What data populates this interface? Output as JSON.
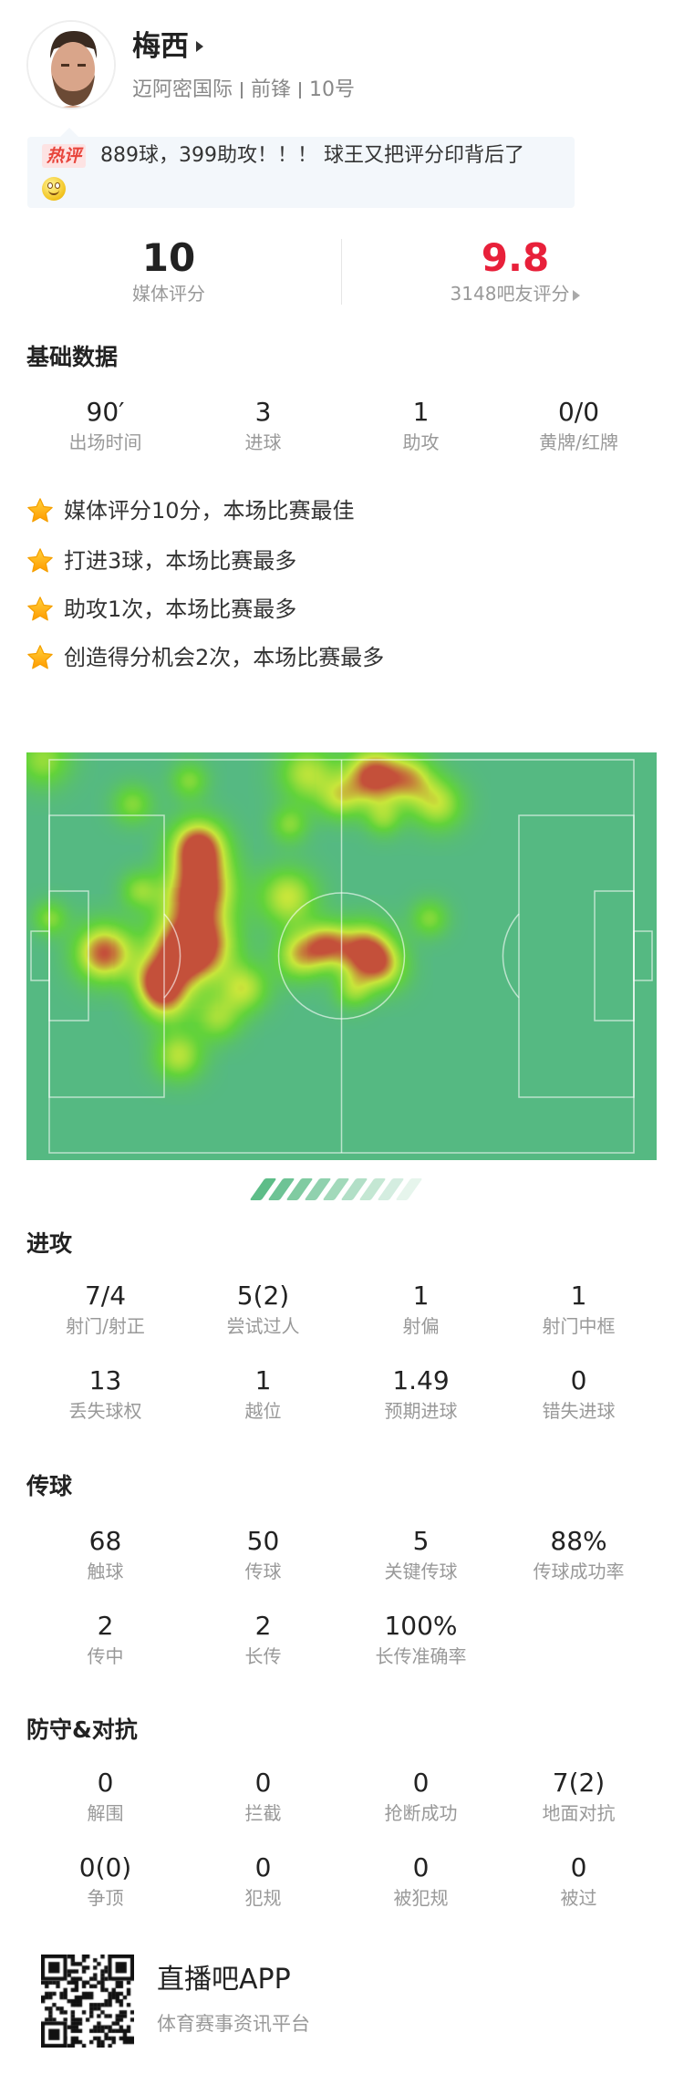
{
  "player": {
    "name": "梅西",
    "team": "迈阿密国际",
    "position": "前锋",
    "number": "10号"
  },
  "hot_comment": {
    "badge": "热评",
    "text": "889球，399助攻！！！ 球王又把评分印背后了",
    "emoji": "smiley-emoji"
  },
  "ratings": {
    "media": {
      "value": "10",
      "label": "媒体评分"
    },
    "fans": {
      "value": "9.8",
      "label": "3148吧友评分",
      "color": "#e8203a"
    }
  },
  "basic": {
    "title": "基础数据",
    "stats": [
      {
        "value": "90′",
        "label": "出场时间"
      },
      {
        "value": "3",
        "label": "进球"
      },
      {
        "value": "1",
        "label": "助攻"
      },
      {
        "value": "0/0",
        "label": "黄牌/红牌"
      }
    ]
  },
  "highlights": [
    "媒体评分10分，本场比赛最佳",
    "打进3球，本场比赛最多",
    "助攻1次，本场比赛最多",
    "创造得分机会2次，本场比赛最多"
  ],
  "heatmap": {
    "pitch_color": "#55b982",
    "low_color": "#62d33a",
    "mid_color": "#c8e63a",
    "high_color": "#c4503a"
  },
  "attack": {
    "title": "进攻",
    "stats": [
      {
        "value": "7/4",
        "label": "射门/射正"
      },
      {
        "value": "5(2)",
        "label": "尝试过人"
      },
      {
        "value": "1",
        "label": "射偏"
      },
      {
        "value": "1",
        "label": "射门中框"
      },
      {
        "value": "13",
        "label": "丢失球权"
      },
      {
        "value": "1",
        "label": "越位"
      },
      {
        "value": "1.49",
        "label": "预期进球"
      },
      {
        "value": "0",
        "label": "错失进球"
      }
    ]
  },
  "passing": {
    "title": "传球",
    "stats": [
      {
        "value": "68",
        "label": "触球"
      },
      {
        "value": "50",
        "label": "传球"
      },
      {
        "value": "5",
        "label": "关键传球"
      },
      {
        "value": "88%",
        "label": "传球成功率"
      },
      {
        "value": "2",
        "label": "传中"
      },
      {
        "value": "2",
        "label": "长传"
      },
      {
        "value": "100%",
        "label": "长传准确率"
      }
    ]
  },
  "defense": {
    "title": "防守&对抗",
    "stats": [
      {
        "value": "0",
        "label": "解围"
      },
      {
        "value": "0",
        "label": "拦截"
      },
      {
        "value": "0",
        "label": "抢断成功"
      },
      {
        "value": "7(2)",
        "label": "地面对抗"
      },
      {
        "value": "0(0)",
        "label": "争顶"
      },
      {
        "value": "0",
        "label": "犯规"
      },
      {
        "value": "0",
        "label": "被犯规"
      },
      {
        "value": "0",
        "label": "被过"
      }
    ]
  },
  "footer": {
    "app_name": "直播吧APP",
    "tagline": "体育赛事资讯平台"
  }
}
